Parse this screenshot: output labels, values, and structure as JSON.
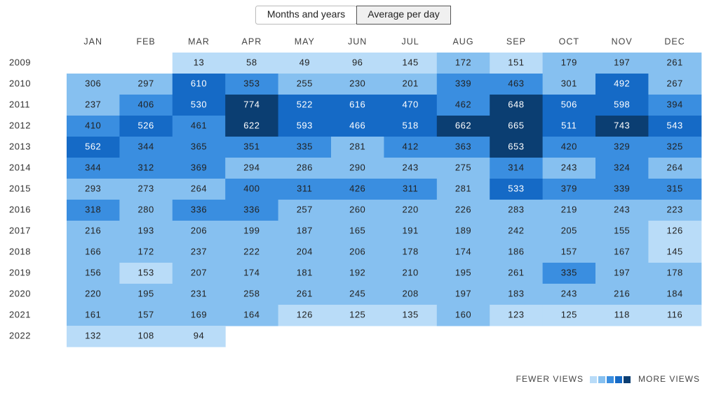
{
  "toggle": {
    "options": [
      "Months and years",
      "Average per day"
    ],
    "selected": 1
  },
  "months": [
    "JAN",
    "FEB",
    "MAR",
    "APR",
    "MAY",
    "JUN",
    "JUL",
    "AUG",
    "SEP",
    "OCT",
    "NOV",
    "DEC"
  ],
  "years": [
    "2009",
    "2010",
    "2011",
    "2012",
    "2013",
    "2014",
    "2015",
    "2016",
    "2017",
    "2018",
    "2019",
    "2020",
    "2021",
    "2022"
  ],
  "values": [
    [
      null,
      null,
      13,
      58,
      49,
      96,
      145,
      172,
      151,
      179,
      197,
      261
    ],
    [
      306,
      297,
      610,
      353,
      255,
      230,
      201,
      339,
      463,
      301,
      492,
      267
    ],
    [
      237,
      406,
      530,
      774,
      522,
      616,
      470,
      462,
      648,
      506,
      598,
      394
    ],
    [
      410,
      526,
      461,
      622,
      593,
      466,
      518,
      662,
      665,
      511,
      743,
      543
    ],
    [
      562,
      344,
      365,
      351,
      335,
      281,
      412,
      363,
      653,
      420,
      329,
      325
    ],
    [
      344,
      312,
      369,
      294,
      286,
      290,
      243,
      275,
      314,
      243,
      324,
      264
    ],
    [
      293,
      273,
      264,
      400,
      311,
      426,
      311,
      281,
      533,
      379,
      339,
      315
    ],
    [
      318,
      280,
      336,
      336,
      257,
      260,
      220,
      226,
      283,
      219,
      243,
      223
    ],
    [
      216,
      193,
      206,
      199,
      187,
      165,
      191,
      189,
      242,
      205,
      155,
      126
    ],
    [
      166,
      172,
      237,
      222,
      204,
      206,
      178,
      174,
      186,
      157,
      167,
      145
    ],
    [
      156,
      153,
      207,
      174,
      181,
      192,
      210,
      195,
      261,
      335,
      197,
      178
    ],
    [
      220,
      195,
      231,
      258,
      261,
      245,
      208,
      197,
      183,
      243,
      216,
      184
    ],
    [
      161,
      157,
      169,
      164,
      126,
      125,
      135,
      160,
      123,
      125,
      118,
      116
    ],
    [
      132,
      108,
      94,
      null,
      null,
      null,
      null,
      null,
      null,
      null,
      null,
      null
    ]
  ],
  "legend": {
    "low": "FEWER VIEWS",
    "high": "MORE VIEWS",
    "colors": [
      "#b9dcf8",
      "#86c0f0",
      "#3a8ee0",
      "#156ac6",
      "#0b3e72"
    ]
  }
}
